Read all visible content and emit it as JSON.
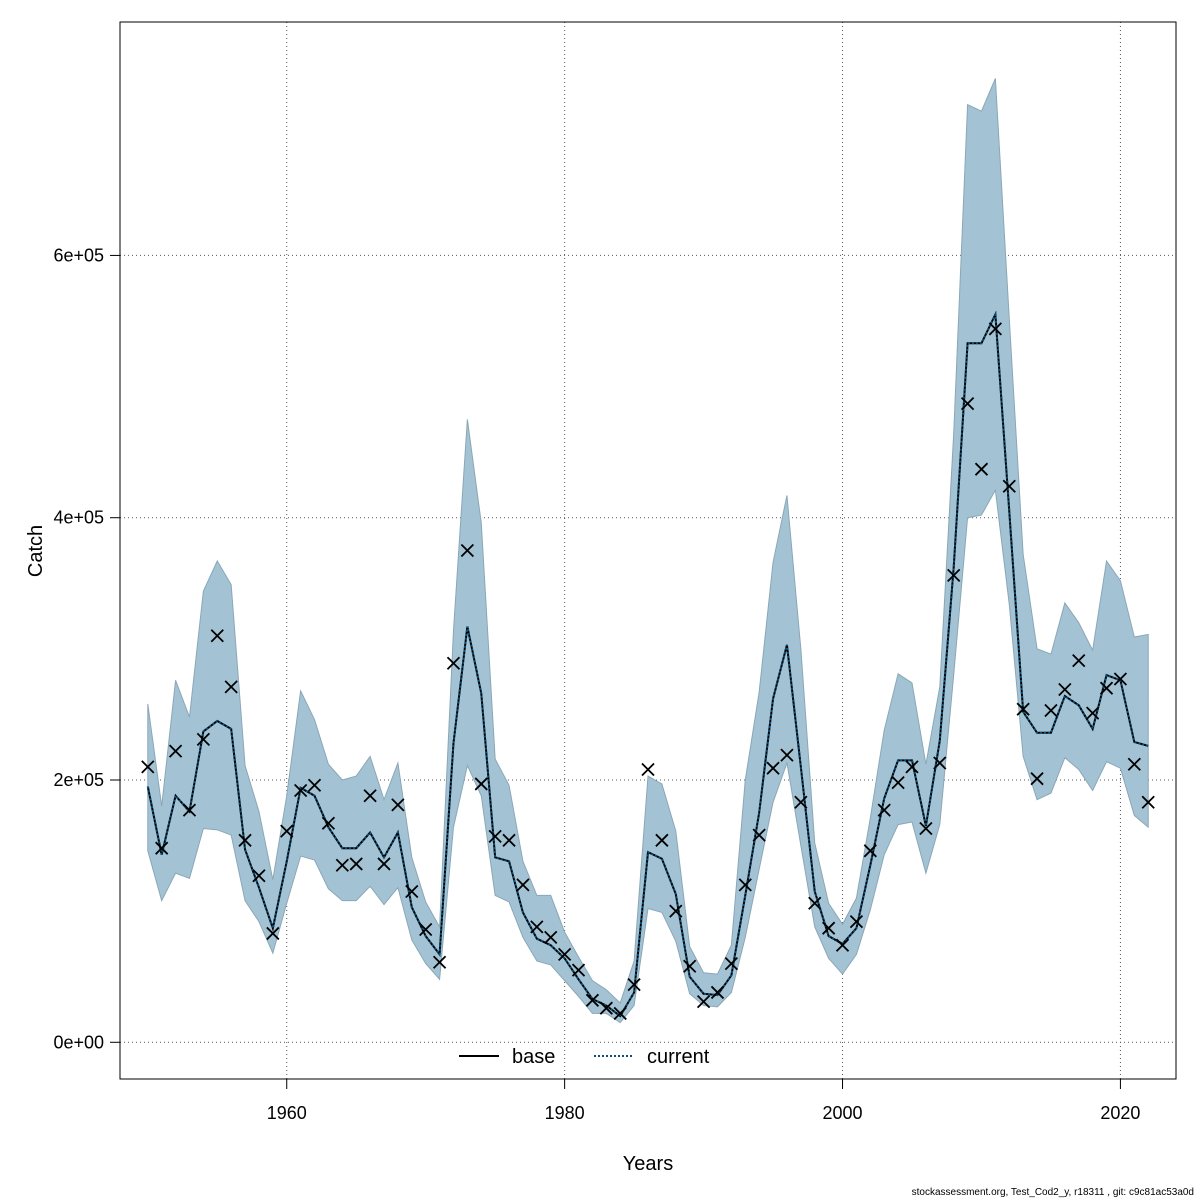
{
  "footer": "stockassessment.org, Test_Cod2_y, r18311 , git: c9c81ac53a0d",
  "chart_data": {
    "type": "line",
    "xlabel": "Years",
    "ylabel": "Catch",
    "xlim": [
      1948,
      2024
    ],
    "ylim": [
      -28000,
      778000
    ],
    "x_ticks": [
      1960,
      1980,
      2000,
      2020
    ],
    "y_ticks": [
      0,
      200000,
      400000,
      600000
    ],
    "y_tick_labels": [
      "0e+00",
      "2e+05",
      "4e+05",
      "6e+05"
    ],
    "grid": true,
    "legend_position": "bottom",
    "colors": {
      "band": "#a3c3d4",
      "band_edge": "#8aa7b6",
      "current": "#0b4f7a",
      "base": "#000000",
      "observed": "#000000",
      "grid": "#555555"
    },
    "years": [
      1950,
      1951,
      1952,
      1953,
      1954,
      1955,
      1956,
      1957,
      1958,
      1959,
      1960,
      1961,
      1962,
      1963,
      1964,
      1965,
      1966,
      1967,
      1968,
      1969,
      1970,
      1971,
      1972,
      1973,
      1974,
      1975,
      1976,
      1977,
      1978,
      1979,
      1980,
      1981,
      1982,
      1983,
      1984,
      1985,
      1986,
      1987,
      1988,
      1989,
      1990,
      1991,
      1992,
      1993,
      1994,
      1995,
      1996,
      1997,
      1998,
      1999,
      2000,
      2001,
      2002,
      2003,
      2004,
      2005,
      2006,
      2007,
      2008,
      2009,
      2010,
      2011,
      2012,
      2013,
      2014,
      2015,
      2016,
      2017,
      2018,
      2019,
      2020,
      2021,
      2022
    ],
    "series": [
      {
        "name": "base",
        "style": "solid",
        "values": [
          195000,
          143000,
          188000,
          176000,
          237000,
          245000,
          239000,
          147000,
          118000,
          87000,
          138000,
          194000,
          188000,
          164000,
          148000,
          148000,
          160000,
          141000,
          160000,
          103000,
          81000,
          67000,
          228000,
          317000,
          266000,
          141000,
          138000,
          99000,
          79000,
          74000,
          64000,
          48000,
          33000,
          28000,
          20000,
          38000,
          145000,
          140000,
          113000,
          50000,
          37000,
          36000,
          51000,
          112000,
          175000,
          262000,
          303000,
          210000,
          115000,
          81000,
          75000,
          87000,
          135000,
          186000,
          215000,
          215000,
          165000,
          230000,
          362000,
          533000,
          533000,
          555000,
          405000,
          252000,
          236000,
          236000,
          264000,
          257000,
          239000,
          280000,
          276000,
          229000,
          226000
        ]
      },
      {
        "name": "current",
        "style": "dotted",
        "values": [
          195000,
          143000,
          188000,
          176000,
          237000,
          245000,
          239000,
          147000,
          118000,
          87000,
          138000,
          194000,
          188000,
          164000,
          148000,
          148000,
          160000,
          141000,
          160000,
          103000,
          81000,
          67000,
          228000,
          317000,
          266000,
          141000,
          138000,
          99000,
          79000,
          74000,
          64000,
          48000,
          33000,
          28000,
          20000,
          38000,
          145000,
          140000,
          113000,
          50000,
          37000,
          36000,
          51000,
          112000,
          175000,
          262000,
          303000,
          210000,
          115000,
          81000,
          75000,
          87000,
          135000,
          186000,
          215000,
          215000,
          165000,
          230000,
          362000,
          533000,
          533000,
          555000,
          405000,
          252000,
          236000,
          236000,
          264000,
          257000,
          239000,
          280000,
          276000,
          229000,
          226000
        ]
      }
    ],
    "band_upper": [
      258000,
      180000,
      276000,
      248000,
      344000,
      367000,
      349000,
      211000,
      176000,
      124000,
      188000,
      268000,
      246000,
      212000,
      200000,
      203000,
      218000,
      185000,
      213000,
      141000,
      107000,
      88000,
      314000,
      475000,
      396000,
      216000,
      196000,
      138000,
      112000,
      112000,
      84000,
      65000,
      47000,
      40000,
      30000,
      62000,
      203000,
      197000,
      161000,
      73000,
      53000,
      52000,
      74000,
      200000,
      267000,
      366000,
      417000,
      300000,
      152000,
      106000,
      90000,
      110000,
      171000,
      238000,
      281000,
      274000,
      212000,
      271000,
      464000,
      715000,
      710000,
      735000,
      552000,
      372000,
      300000,
      296000,
      335000,
      320000,
      299000,
      367000,
      352000,
      309000,
      311000
    ],
    "band_lower": [
      146000,
      108000,
      129000,
      125000,
      163000,
      162000,
      158000,
      108000,
      92000,
      68000,
      106000,
      142000,
      139000,
      117000,
      108000,
      108000,
      119000,
      105000,
      118000,
      78000,
      60000,
      48000,
      164000,
      211000,
      188000,
      112000,
      107000,
      80000,
      62000,
      59000,
      47000,
      35000,
      22000,
      22000,
      15000,
      28000,
      102000,
      99000,
      77000,
      37000,
      28000,
      27000,
      38000,
      80000,
      132000,
      183000,
      213000,
      150000,
      88000,
      64000,
      52000,
      67000,
      101000,
      143000,
      166000,
      168000,
      129000,
      166000,
      280000,
      400000,
      402000,
      421000,
      334000,
      218000,
      185000,
      190000,
      217000,
      208000,
      192000,
      214000,
      209000,
      173000,
      164000
    ],
    "observed": [
      210000,
      148000,
      222000,
      177000,
      231000,
      310000,
      271000,
      154000,
      127000,
      83000,
      161000,
      192000,
      196000,
      167000,
      135000,
      136000,
      188000,
      136000,
      181000,
      115000,
      86000,
      61000,
      289000,
      375000,
      197000,
      157000,
      154000,
      120000,
      88000,
      80000,
      67000,
      55000,
      32000,
      26000,
      22000,
      44000,
      208000,
      154000,
      100000,
      58000,
      31000,
      38000,
      60000,
      120000,
      158000,
      209000,
      219000,
      183000,
      106000,
      87000,
      74000,
      92000,
      146000,
      177000,
      198000,
      210000,
      163000,
      213000,
      356000,
      487000,
      437000,
      544000,
      424000,
      254000,
      201000,
      253000,
      269000,
      291000,
      251000,
      270000,
      277000,
      212000,
      183000
    ],
    "legend": {
      "base": "base",
      "current": "current"
    }
  }
}
